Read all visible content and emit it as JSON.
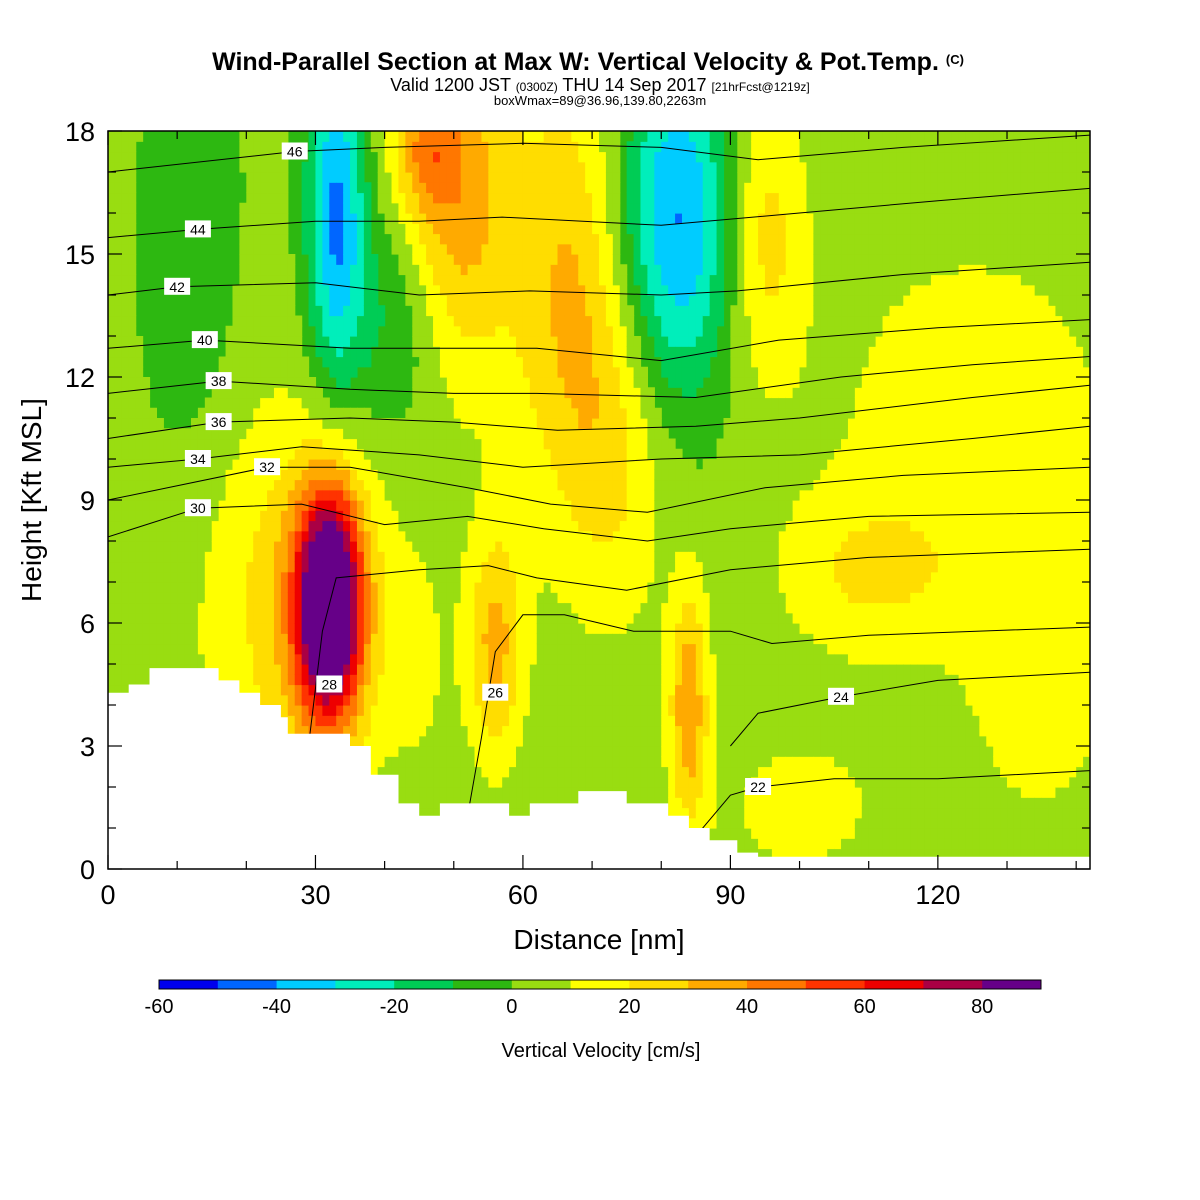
{
  "chart_data": {
    "type": "heatmap",
    "title": "Wind-Parallel Section at Max W: Vertical Velocity & Pot.Temp.",
    "title_suffix": "(C)",
    "subtitle_parts": [
      "Valid 1200 JST",
      "(0300Z)",
      "THU 14 Sep 2017",
      "[21hrFcst@1219z]"
    ],
    "subtitle2": "boxWmax=89@36.96,139.80,2263m",
    "xlabel": "Distance [nm]",
    "ylabel": "Height [Kft MSL]",
    "xlim": [
      0,
      142
    ],
    "ylim": [
      0,
      18
    ],
    "x_ticks": [
      0,
      30,
      60,
      90,
      120
    ],
    "y_ticks": [
      0,
      3,
      6,
      9,
      12,
      15,
      18
    ],
    "colorbar": {
      "label": "Vertical Velocity [cm/s]",
      "ticks": [
        -60,
        -40,
        -20,
        0,
        20,
        40,
        60,
        80
      ],
      "bins": [
        -60,
        -50,
        -40,
        -30,
        -20,
        -10,
        0,
        10,
        20,
        30,
        40,
        50,
        60,
        70,
        80,
        90
      ],
      "colors": [
        "#0000ee",
        "#0066ff",
        "#00ccff",
        "#00eebb",
        "#00cc55",
        "#2db811",
        "#99dd11",
        "#ffff00",
        "#ffdd00",
        "#ffaa00",
        "#ff7700",
        "#ff3300",
        "#ee0000",
        "#aa0044",
        "#660088"
      ]
    },
    "background_color": "#2db811",
    "w_features": [
      {
        "x": 32,
        "y": 6.5,
        "sx": 3.2,
        "sy": 1.9,
        "w": 100
      },
      {
        "x": 31,
        "y": 6.2,
        "sx": 7,
        "sy": 3,
        "w": 25
      },
      {
        "x": 56,
        "y": 5.5,
        "sx": 3,
        "sy": 2,
        "w": 30
      },
      {
        "x": 84,
        "y": 4,
        "sx": 2,
        "sy": 2,
        "w": 35
      },
      {
        "x": 50,
        "y": 16.5,
        "sx": 6,
        "sy": 3.2,
        "w": 35
      },
      {
        "x": 46,
        "y": 17.5,
        "sx": 3,
        "sy": 1,
        "w": 20
      },
      {
        "x": 67,
        "y": 14,
        "sx": 6,
        "sy": 4,
        "w": 28
      },
      {
        "x": 74,
        "y": 10,
        "sx": 5,
        "sy": 3,
        "w": 15
      },
      {
        "x": 95,
        "y": 15.5,
        "sx": 4,
        "sy": 2.5,
        "w": 22
      },
      {
        "x": 33,
        "y": 16,
        "sx": 3,
        "sy": 3,
        "w": -45
      },
      {
        "x": 82,
        "y": 15.8,
        "sx": 6,
        "sy": 3,
        "w": -45
      },
      {
        "x": 42,
        "y": 13.5,
        "sx": 5,
        "sy": 2,
        "w": -18
      },
      {
        "x": 12,
        "y": 15,
        "sx": 5,
        "sy": 4,
        "w": -12
      },
      {
        "x": 110,
        "y": 7.2,
        "sx": 9,
        "sy": 1.4,
        "w": 16
      },
      {
        "x": 125,
        "y": 11,
        "sx": 16,
        "sy": 3.5,
        "w": 12
      },
      {
        "x": 135,
        "y": 5,
        "sx": 8,
        "sy": 3,
        "w": 12
      },
      {
        "x": 20,
        "y": 7,
        "sx": 8,
        "sy": 4,
        "w": 10
      },
      {
        "x": 100,
        "y": 1.5,
        "sx": 10,
        "sy": 1.5,
        "w": 10
      },
      {
        "x": 45,
        "y": 5,
        "sx": 3,
        "sy": 2,
        "w": 8
      }
    ],
    "terrain": [
      [
        0,
        4.3
      ],
      [
        3,
        4.3
      ],
      [
        3,
        4.5
      ],
      [
        6,
        4.5
      ],
      [
        6,
        4.9
      ],
      [
        16,
        4.9
      ],
      [
        16,
        4.6
      ],
      [
        19,
        4.6
      ],
      [
        19,
        4.3
      ],
      [
        22,
        4.3
      ],
      [
        22,
        4.0
      ],
      [
        25,
        4.0
      ],
      [
        25,
        3.7
      ],
      [
        26,
        3.7
      ],
      [
        26,
        3.3
      ],
      [
        35,
        3.3
      ],
      [
        35,
        3.0
      ],
      [
        38,
        3.0
      ],
      [
        38,
        2.3
      ],
      [
        42,
        2.3
      ],
      [
        42,
        1.6
      ],
      [
        45,
        1.6
      ],
      [
        45,
        1.3
      ],
      [
        48,
        1.3
      ],
      [
        48,
        1.6
      ],
      [
        58,
        1.6
      ],
      [
        58,
        1.3
      ],
      [
        61,
        1.3
      ],
      [
        61,
        1.6
      ],
      [
        68,
        1.6
      ],
      [
        68,
        1.9
      ],
      [
        75,
        1.9
      ],
      [
        75,
        1.6
      ],
      [
        81,
        1.6
      ],
      [
        81,
        1.3
      ],
      [
        84,
        1.3
      ],
      [
        84,
        1.0
      ],
      [
        87,
        1.0
      ],
      [
        87,
        0.7
      ],
      [
        91,
        0.7
      ],
      [
        91,
        0.4
      ],
      [
        94,
        0.4
      ],
      [
        94,
        0.3
      ],
      [
        142,
        0.3
      ]
    ],
    "theta_contours": [
      {
        "value": 22,
        "label_at": [
          94,
          2.0
        ],
        "points": [
          [
            84,
            0.6
          ],
          [
            90,
            1.8
          ],
          [
            94,
            2.0
          ],
          [
            105,
            2.2
          ],
          [
            120,
            2.2
          ],
          [
            142,
            2.4
          ]
        ]
      },
      {
        "value": 24,
        "label_at": [
          106,
          4.2
        ],
        "points": [
          [
            90,
            3.0
          ],
          [
            94,
            3.8
          ],
          [
            106,
            4.2
          ],
          [
            120,
            4.6
          ],
          [
            142,
            4.8
          ]
        ]
      },
      {
        "value": 26,
        "label_at": [
          56,
          4.3
        ],
        "points": [
          [
            52,
            1.3
          ],
          [
            54,
            3.2
          ],
          [
            56,
            5.3
          ],
          [
            60,
            6.2
          ],
          [
            66,
            6.2
          ],
          [
            76,
            5.8
          ],
          [
            90,
            5.8
          ],
          [
            96,
            5.5
          ],
          [
            110,
            5.7
          ],
          [
            142,
            5.9
          ]
        ]
      },
      {
        "value": 28,
        "label_at": [
          32,
          4.5
        ],
        "points": [
          [
            29,
            3.0
          ],
          [
            31,
            5.8
          ],
          [
            33,
            7.1
          ],
          [
            45,
            7.3
          ],
          [
            55,
            7.4
          ],
          [
            62,
            7.1
          ],
          [
            75,
            6.8
          ],
          [
            90,
            7.3
          ],
          [
            110,
            7.6
          ],
          [
            142,
            7.8
          ]
        ]
      },
      {
        "value": 30,
        "label_at": [
          13,
          8.8
        ],
        "points": [
          [
            0,
            8.1
          ],
          [
            13,
            8.8
          ],
          [
            28,
            8.9
          ],
          [
            40,
            8.4
          ],
          [
            52,
            8.6
          ],
          [
            63,
            8.3
          ],
          [
            78,
            8.0
          ],
          [
            90,
            8.3
          ],
          [
            110,
            8.6
          ],
          [
            142,
            8.7
          ]
        ]
      },
      {
        "value": 32,
        "label_at": [
          23,
          9.8
        ],
        "points": [
          [
            0,
            9.0
          ],
          [
            23,
            9.8
          ],
          [
            35,
            9.8
          ],
          [
            52,
            9.3
          ],
          [
            64,
            8.9
          ],
          [
            78,
            8.7
          ],
          [
            95,
            9.3
          ],
          [
            115,
            9.6
          ],
          [
            142,
            9.8
          ]
        ]
      },
      {
        "value": 34,
        "label_at": [
          13,
          10.0
        ],
        "points": [
          [
            0,
            9.8
          ],
          [
            13,
            10.0
          ],
          [
            28,
            10.3
          ],
          [
            45,
            10.1
          ],
          [
            60,
            9.8
          ],
          [
            80,
            10.0
          ],
          [
            100,
            10.1
          ],
          [
            125,
            10.5
          ],
          [
            142,
            10.8
          ]
        ]
      },
      {
        "value": 36,
        "label_at": [
          16,
          10.9
        ],
        "points": [
          [
            0,
            10.5
          ],
          [
            16,
            10.9
          ],
          [
            35,
            11.0
          ],
          [
            50,
            10.9
          ],
          [
            65,
            10.7
          ],
          [
            85,
            10.8
          ],
          [
            100,
            11.0
          ],
          [
            125,
            11.5
          ],
          [
            142,
            11.8
          ]
        ]
      },
      {
        "value": 38,
        "label_at": [
          16,
          11.9
        ],
        "points": [
          [
            0,
            11.6
          ],
          [
            16,
            11.9
          ],
          [
            35,
            11.7
          ],
          [
            50,
            11.6
          ],
          [
            62,
            11.6
          ],
          [
            85,
            11.5
          ],
          [
            106,
            12.0
          ],
          [
            125,
            12.3
          ],
          [
            142,
            12.5
          ]
        ]
      },
      {
        "value": 40,
        "label_at": [
          14,
          12.9
        ],
        "points": [
          [
            0,
            12.7
          ],
          [
            14,
            12.9
          ],
          [
            35,
            12.7
          ],
          [
            49,
            12.7
          ],
          [
            62,
            12.7
          ],
          [
            80,
            12.4
          ],
          [
            97,
            12.9
          ],
          [
            120,
            13.2
          ],
          [
            142,
            13.4
          ]
        ]
      },
      {
        "value": 42,
        "label_at": [
          10,
          14.2
        ],
        "points": [
          [
            0,
            14.0
          ],
          [
            10,
            14.2
          ],
          [
            30,
            14.3
          ],
          [
            45,
            14.0
          ],
          [
            61,
            14.1
          ],
          [
            80,
            14.0
          ],
          [
            91,
            14.1
          ],
          [
            115,
            14.5
          ],
          [
            142,
            14.8
          ]
        ]
      },
      {
        "value": 44,
        "label_at": [
          13,
          15.6
        ],
        "points": [
          [
            0,
            15.4
          ],
          [
            13,
            15.6
          ],
          [
            30,
            15.8
          ],
          [
            45,
            15.8
          ],
          [
            57,
            15.9
          ],
          [
            80,
            15.7
          ],
          [
            100,
            16.0
          ],
          [
            120,
            16.3
          ],
          [
            142,
            16.6
          ]
        ]
      },
      {
        "value": 46,
        "label_at": [
          27,
          17.5
        ],
        "points": [
          [
            0,
            17.0
          ],
          [
            27,
            17.5
          ],
          [
            40,
            17.6
          ],
          [
            60,
            17.7
          ],
          [
            80,
            17.6
          ],
          [
            94,
            17.3
          ],
          [
            115,
            17.6
          ],
          [
            142,
            17.9
          ]
        ]
      }
    ]
  }
}
